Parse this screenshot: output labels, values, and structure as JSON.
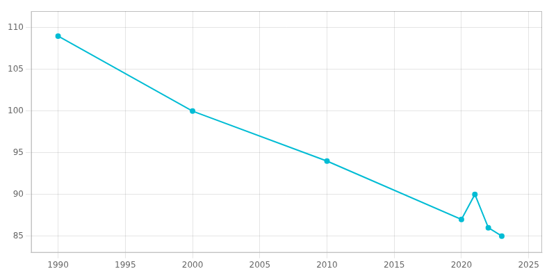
{
  "chart_data": {
    "type": "line",
    "x": [
      1990,
      2000,
      2010,
      2020,
      2021,
      2022,
      2023
    ],
    "values": [
      109,
      100,
      94,
      87,
      90,
      86,
      85
    ],
    "color": "#00bcd4",
    "marker": "circle",
    "xlim": [
      1988,
      2026
    ],
    "ylim": [
      83,
      112
    ],
    "xticks": [
      1990,
      1995,
      2000,
      2005,
      2010,
      2015,
      2020,
      2025
    ],
    "yticks": [
      85,
      90,
      95,
      100,
      105,
      110
    ],
    "grid": true
  }
}
